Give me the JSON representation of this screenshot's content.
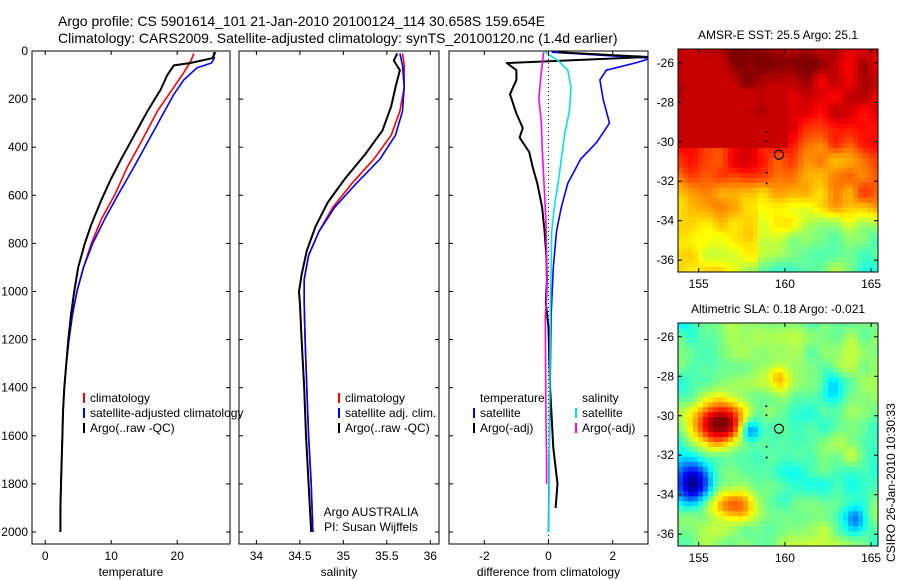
{
  "header": {
    "line1": "Argo profile: CS 5901614_101 21-Jan-2010 20100124_114 30.658S 159.654E",
    "line2": "Climatology: CARS2009. Satellite-adjusted climatology: synTS_20100120.nc (1.4d earlier)"
  },
  "side_label": "CSIRO 26-Jan-2010 10:30:33",
  "colors": {
    "clim": "#ff0000",
    "sat": "#0000ff",
    "argo": "#000000",
    "sal_sat": "#00e5e5",
    "sal_argo": "#ff00ff"
  },
  "chart_data": [
    {
      "type": "line",
      "xlabel": "temperature",
      "ylabel": "",
      "xlim": [
        -2,
        28
      ],
      "ylim": [
        2050,
        0
      ],
      "xticks": [
        "0",
        "10",
        "20"
      ],
      "xtick_values": [
        0,
        10,
        20
      ],
      "yticks": [
        "0",
        "200",
        "400",
        "600",
        "800",
        "1000",
        "1200",
        "1400",
        "1600",
        "1800",
        "2000"
      ],
      "ytick_values": [
        0,
        200,
        400,
        600,
        800,
        1000,
        1200,
        1400,
        1600,
        1800,
        2000
      ],
      "legend": [
        "climatology",
        "satellite-adjusted climatology",
        "Argo(..raw -QC)"
      ],
      "series": [
        {
          "name": "climatology",
          "color": "#ff0000",
          "points": [
            [
              22.5,
              10
            ],
            [
              22.1,
              40
            ],
            [
              21,
              90
            ],
            [
              19.5,
              150
            ],
            [
              17,
              250
            ],
            [
              14.5,
              380
            ],
            [
              12.5,
              480
            ],
            [
              10.5,
              600
            ],
            [
              8.5,
              700
            ],
            [
              7,
              800
            ],
            [
              5.8,
              900
            ],
            [
              4.8,
              1000
            ],
            [
              4.1,
              1100
            ],
            [
              3.6,
              1200
            ],
            [
              3.2,
              1300
            ],
            [
              2.9,
              1400
            ],
            [
              2.7,
              1500
            ],
            [
              2.6,
              1600
            ],
            [
              2.5,
              1700
            ],
            [
              2.4,
              1800
            ],
            [
              2.3,
              1900
            ],
            [
              2.3,
              2000
            ]
          ]
        },
        {
          "name": "satellite-adjusted climatology",
          "color": "#0000ff",
          "points": [
            [
              25.5,
              5
            ],
            [
              25.6,
              30
            ],
            [
              25.2,
              50
            ],
            [
              23,
              70
            ],
            [
              21,
              120
            ],
            [
              19.5,
              180
            ],
            [
              17.5,
              280
            ],
            [
              15.5,
              380
            ],
            [
              13.5,
              480
            ],
            [
              11,
              600
            ],
            [
              9,
              700
            ],
            [
              7.2,
              800
            ],
            [
              5.8,
              900
            ],
            [
              4.8,
              1000
            ],
            [
              4.1,
              1100
            ],
            [
              3.6,
              1200
            ],
            [
              3.2,
              1300
            ],
            [
              2.9,
              1400
            ],
            [
              2.7,
              1500
            ],
            [
              2.6,
              1600
            ],
            [
              2.5,
              1700
            ],
            [
              2.4,
              1800
            ],
            [
              2.3,
              1900
            ],
            [
              2.3,
              2000
            ]
          ]
        },
        {
          "name": "Argo(..raw -QC)",
          "color": "#000000",
          "points": [
            [
              25.8,
              5
            ],
            [
              25.3,
              30
            ],
            [
              22,
              50
            ],
            [
              19.5,
              60
            ],
            [
              18.5,
              100
            ],
            [
              17.5,
              160
            ],
            [
              15.5,
              250
            ],
            [
              13.5,
              350
            ],
            [
              11.5,
              450
            ],
            [
              10,
              530
            ],
            [
              8.5,
              620
            ],
            [
              7,
              720
            ],
            [
              6,
              800
            ],
            [
              5,
              900
            ],
            [
              4.4,
              1000
            ],
            [
              3.9,
              1100
            ],
            [
              3.5,
              1200
            ],
            [
              3.2,
              1300
            ],
            [
              2.9,
              1400
            ],
            [
              2.7,
              1500
            ],
            [
              2.6,
              1600
            ],
            [
              2.5,
              1700
            ],
            [
              2.4,
              1800
            ],
            [
              2.3,
              1900
            ],
            [
              2.3,
              2000
            ]
          ]
        }
      ]
    },
    {
      "type": "line",
      "xlabel": "salinity",
      "xlim": [
        33.8,
        36.1
      ],
      "ylim": [
        2050,
        0
      ],
      "xticks": [
        "34",
        "34.5",
        "35",
        "35.5",
        "36"
      ],
      "xtick_values": [
        34,
        34.5,
        35,
        35.5,
        36
      ],
      "yticks": [
        "0",
        "200",
        "400",
        "600",
        "800",
        "1000",
        "1200",
        "1400",
        "1600",
        "1800",
        "2000"
      ],
      "ytick_values": [
        0,
        200,
        400,
        600,
        800,
        1000,
        1200,
        1400,
        1600,
        1800,
        2000
      ],
      "legend": [
        "climatology",
        "satellite adj. clim.",
        "Argo(..raw -QC)"
      ],
      "annotation": [
        "Argo AUSTRALIA",
        "PI: Susan Wijffels"
      ],
      "series": [
        {
          "name": "climatology",
          "color": "#ff0000",
          "points": [
            [
              35.68,
              10
            ],
            [
              35.7,
              60
            ],
            [
              35.7,
              150
            ],
            [
              35.65,
              250
            ],
            [
              35.55,
              350
            ],
            [
              35.35,
              450
            ],
            [
              35.1,
              550
            ],
            [
              34.88,
              650
            ],
            [
              34.72,
              750
            ],
            [
              34.6,
              850
            ],
            [
              34.55,
              950
            ],
            [
              34.55,
              1050
            ],
            [
              34.56,
              1200
            ],
            [
              34.58,
              1400
            ],
            [
              34.6,
              1600
            ],
            [
              34.63,
              1800
            ],
            [
              34.65,
              2000
            ]
          ]
        },
        {
          "name": "satellite adj. clim.",
          "color": "#0000ff",
          "points": [
            [
              35.65,
              10
            ],
            [
              35.68,
              60
            ],
            [
              35.7,
              150
            ],
            [
              35.68,
              250
            ],
            [
              35.6,
              350
            ],
            [
              35.42,
              450
            ],
            [
              35.15,
              550
            ],
            [
              34.9,
              650
            ],
            [
              34.72,
              750
            ],
            [
              34.6,
              850
            ],
            [
              34.55,
              950
            ],
            [
              34.55,
              1050
            ],
            [
              34.56,
              1200
            ],
            [
              34.58,
              1400
            ],
            [
              34.6,
              1600
            ],
            [
              34.63,
              1800
            ],
            [
              34.65,
              2000
            ]
          ]
        },
        {
          "name": "Argo(..raw -QC)",
          "color": "#000000",
          "points": [
            [
              35.62,
              10
            ],
            [
              35.58,
              40
            ],
            [
              35.65,
              80
            ],
            [
              35.6,
              150
            ],
            [
              35.55,
              230
            ],
            [
              35.45,
              330
            ],
            [
              35.25,
              430
            ],
            [
              35.02,
              530
            ],
            [
              34.82,
              630
            ],
            [
              34.68,
              730
            ],
            [
              34.58,
              830
            ],
            [
              34.52,
              930
            ],
            [
              34.49,
              1000
            ],
            [
              34.5,
              1050
            ],
            [
              34.52,
              1200
            ],
            [
              34.55,
              1400
            ],
            [
              34.57,
              1600
            ],
            [
              34.6,
              1800
            ],
            [
              34.63,
              2000
            ]
          ]
        }
      ]
    },
    {
      "type": "line",
      "xlabel": "difference from climatology",
      "xlim": [
        -3.1,
        3.1
      ],
      "ylim": [
        2050,
        0
      ],
      "xticks": [
        "-2",
        "0",
        "2"
      ],
      "xtick_values": [
        -2,
        0,
        2
      ],
      "yticks": [
        "0",
        "200",
        "400",
        "600",
        "800",
        "1000",
        "1200",
        "1400",
        "1600",
        "1800",
        "2000"
      ],
      "ytick_values": [
        0,
        200,
        400,
        600,
        800,
        1000,
        1200,
        1400,
        1600,
        1800,
        2000
      ],
      "legend_temperature": {
        "title": "temperature",
        "items": [
          "satellite",
          "Argo(-adj)"
        ]
      },
      "legend_salinity": {
        "title": "salinity",
        "items": [
          "satellite",
          "Argo(-adj)"
        ]
      },
      "series": [
        {
          "name": "satellite",
          "color": "#0000ff",
          "points": [
            [
              0.1,
              5
            ],
            [
              3.2,
              30
            ],
            [
              2.7,
              50
            ],
            [
              1.8,
              80
            ],
            [
              1.6,
              120
            ],
            [
              1.7,
              200
            ],
            [
              1.9,
              300
            ],
            [
              1.5,
              380
            ],
            [
              1.0,
              450
            ],
            [
              0.6,
              550
            ],
            [
              0.4,
              650
            ],
            [
              0.25,
              750
            ],
            [
              0.15,
              900
            ],
            [
              0.08,
              1100
            ],
            [
              0.05,
              1400
            ],
            [
              0.02,
              1700
            ],
            [
              0,
              2000
            ]
          ]
        },
        {
          "name": "Argo(-adj)",
          "color": "#000000",
          "points": [
            [
              0.3,
              5
            ],
            [
              3.1,
              25
            ],
            [
              -1.3,
              50
            ],
            [
              -1.0,
              80
            ],
            [
              -1.0,
              120
            ],
            [
              -1.2,
              180
            ],
            [
              -1.0,
              260
            ],
            [
              -0.8,
              320
            ],
            [
              -0.9,
              360
            ],
            [
              -0.6,
              420
            ],
            [
              -0.5,
              480
            ],
            [
              -0.35,
              550
            ],
            [
              -0.2,
              650
            ],
            [
              -0.12,
              750
            ],
            [
              -0.07,
              850
            ],
            [
              -0.05,
              950
            ],
            [
              -0.08,
              1050
            ],
            [
              0,
              1150
            ],
            [
              0.05,
              1400
            ],
            [
              0.15,
              1650
            ],
            [
              0.28,
              1800
            ],
            [
              0.22,
              1900
            ]
          ]
        },
        {
          "name": "salinity satellite",
          "color": "#00e5e5",
          "points": [
            [
              -0.1,
              5
            ],
            [
              0.3,
              40
            ],
            [
              0.6,
              80
            ],
            [
              0.7,
              150
            ],
            [
              0.65,
              250
            ],
            [
              0.5,
              350
            ],
            [
              0.4,
              450
            ],
            [
              0.3,
              550
            ],
            [
              0.18,
              650
            ],
            [
              0.1,
              750
            ],
            [
              0.08,
              900
            ],
            [
              0.06,
              1100
            ],
            [
              0.04,
              1400
            ],
            [
              0.02,
              1700
            ],
            [
              0.01,
              2000
            ]
          ]
        },
        {
          "name": "salinity Argo(-adj)",
          "color": "#ff00ff",
          "points": [
            [
              -0.15,
              5
            ],
            [
              -0.2,
              60
            ],
            [
              -0.25,
              120
            ],
            [
              -0.3,
              200
            ],
            [
              -0.22,
              300
            ],
            [
              -0.2,
              400
            ],
            [
              -0.16,
              500
            ],
            [
              -0.12,
              600
            ],
            [
              -0.08,
              700
            ],
            [
              -0.07,
              800
            ],
            [
              -0.06,
              900
            ],
            [
              -0.05,
              1000
            ],
            [
              -0.07,
              1050
            ],
            [
              -0.1,
              1100
            ],
            [
              -0.09,
              1300
            ],
            [
              -0.08,
              1500
            ],
            [
              -0.06,
              1700
            ],
            [
              -0.06,
              1800
            ]
          ]
        }
      ]
    },
    {
      "type": "heatmap",
      "title": "AMSR-E SST: 25.5 Argo: 25.1",
      "xlim": [
        153.8,
        165.4
      ],
      "ylim": [
        -36.6,
        -25.3
      ],
      "xticks": [
        "155",
        "160",
        "165"
      ],
      "xtick_values": [
        155,
        160,
        165
      ],
      "yticks": [
        "-26",
        "-28",
        "-30",
        "-32",
        "-34",
        "-36"
      ],
      "ytick_values": [
        -26,
        -28,
        -30,
        -32,
        -34,
        -36
      ],
      "marker": {
        "lon": 159.654,
        "lat": -30.658
      }
    },
    {
      "type": "heatmap",
      "title": "Altimetric SLA: 0.18 Argo: -0.021",
      "xlim": [
        153.8,
        165.4
      ],
      "ylim": [
        -36.6,
        -25.3
      ],
      "xticks": [
        "155",
        "160",
        "165"
      ],
      "xtick_values": [
        155,
        160,
        165
      ],
      "yticks": [
        "-26",
        "-28",
        "-30",
        "-32",
        "-34",
        "-36"
      ],
      "ytick_values": [
        -26,
        -28,
        -30,
        -32,
        -34,
        -36
      ],
      "marker": {
        "lon": 159.654,
        "lat": -30.658
      }
    }
  ]
}
